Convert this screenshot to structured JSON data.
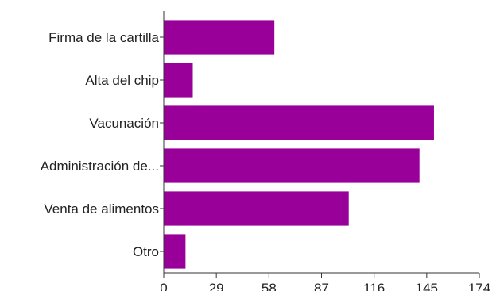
{
  "chart_data": {
    "type": "bar",
    "orientation": "horizontal",
    "categories": [
      "Firma de la cartilla",
      "Alta del chip",
      "Vacunación",
      "Administración de...",
      "Venta de alimentos",
      "Otro"
    ],
    "values": [
      61,
      16,
      149,
      141,
      102,
      12
    ],
    "xlim": [
      0,
      174
    ],
    "xticks": [
      "0",
      "29",
      "58",
      "87",
      "116",
      "145",
      "174"
    ],
    "title": "",
    "xlabel": "",
    "ylabel": "",
    "grid": false,
    "legend": "none",
    "bar_color": "#990099",
    "axis_color": "#333333"
  }
}
